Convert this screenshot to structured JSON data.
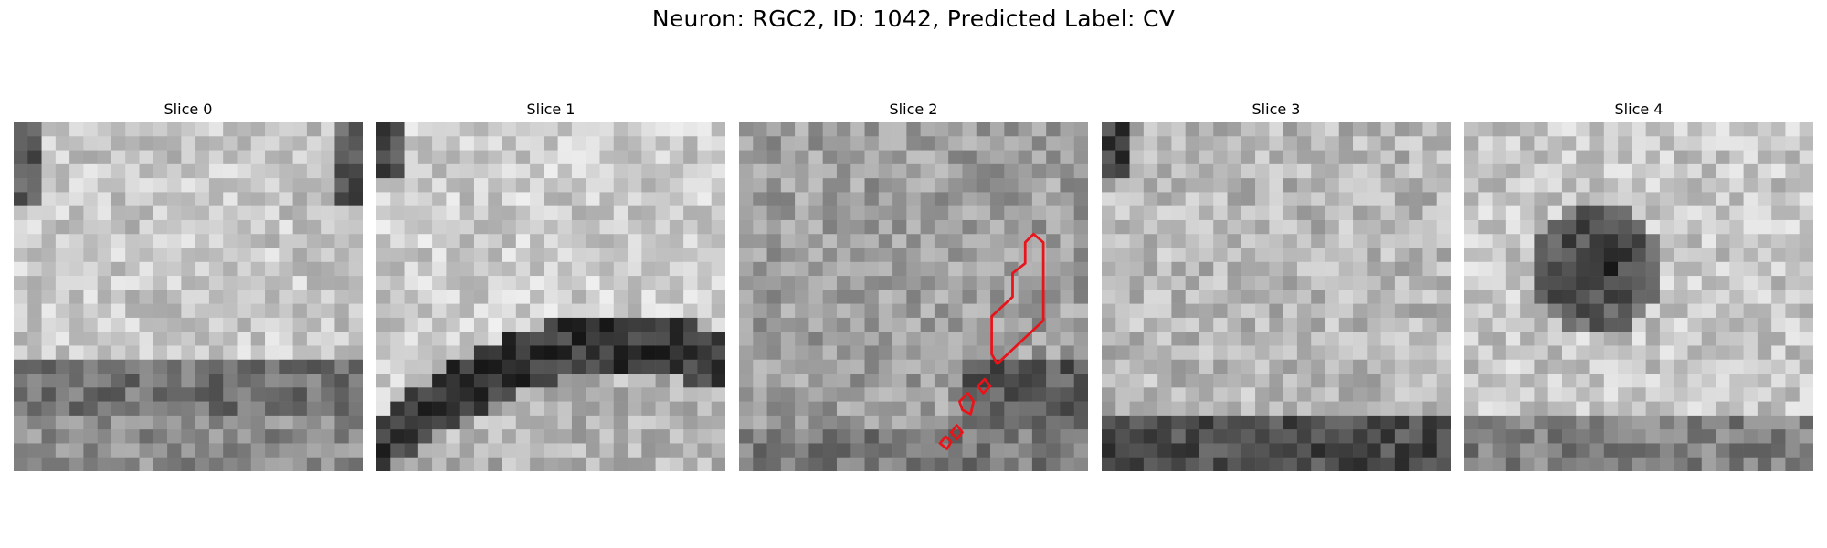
{
  "figure": {
    "suptitle": "Neuron: RGC2, ID: 1042, Predicted Label: CV"
  },
  "panels": [
    {
      "title": "Slice 0"
    },
    {
      "title": "Slice 1"
    },
    {
      "title": "Slice 2"
    },
    {
      "title": "Slice 3"
    },
    {
      "title": "Slice 4"
    }
  ],
  "overlay": {
    "color": "#e8141a",
    "panel_index": 2
  }
}
